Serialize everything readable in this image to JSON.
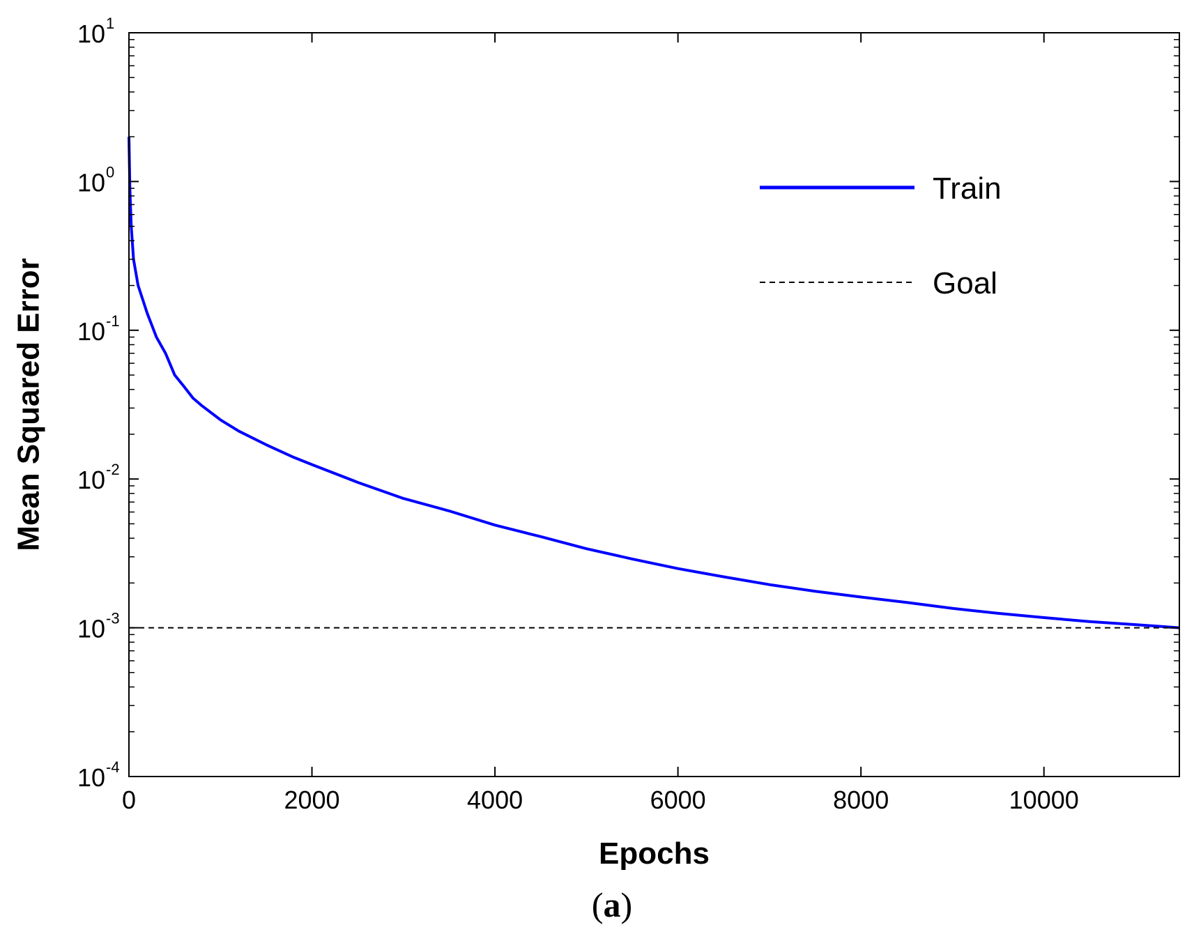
{
  "chart_data": {
    "type": "line",
    "xlabel": "Epochs",
    "ylabel": "Mean Squared Error",
    "xlim": [
      0,
      11480
    ],
    "ylim": [
      0.0001,
      10
    ],
    "yscale": "log",
    "x_ticks": [
      0,
      2000,
      4000,
      6000,
      8000,
      10000
    ],
    "x_tick_labels": [
      "0",
      "2000",
      "4000",
      "6000",
      "8000",
      "10000"
    ],
    "y_ticks": [
      10,
      1,
      0.1,
      0.01,
      0.001,
      0.0001
    ],
    "y_tick_base": [
      "10",
      "10",
      "10",
      "10",
      "10",
      "10"
    ],
    "y_tick_exponents": [
      "1",
      "0",
      "-1",
      "-2",
      "-3",
      "-4"
    ],
    "grid": false,
    "legend": {
      "placement": "top-right",
      "entries": [
        "Train",
        "Goal"
      ]
    },
    "series": [
      {
        "name": "Train",
        "color": "#0000ff",
        "style": "solid",
        "x": [
          0,
          10,
          25,
          50,
          100,
          200,
          300,
          400,
          500,
          600,
          700,
          800,
          1000,
          1200,
          1500,
          1800,
          2000,
          2500,
          3000,
          3500,
          4000,
          4500,
          5000,
          5500,
          6000,
          6500,
          7000,
          7500,
          8000,
          8500,
          9000,
          9500,
          10000,
          10500,
          11000,
          11480
        ],
        "y": [
          2.0,
          0.9,
          0.5,
          0.3,
          0.2,
          0.13,
          0.09,
          0.07,
          0.05,
          0.042,
          0.035,
          0.031,
          0.025,
          0.021,
          0.017,
          0.014,
          0.0125,
          0.0095,
          0.0074,
          0.0061,
          0.0049,
          0.0041,
          0.0034,
          0.0029,
          0.0025,
          0.0022,
          0.00195,
          0.00176,
          0.00161,
          0.00148,
          0.00135,
          0.00125,
          0.00117,
          0.0011,
          0.00105,
          0.001
        ]
      },
      {
        "name": "Goal",
        "color": "#000000",
        "style": "dashed",
        "x": [
          0,
          11480
        ],
        "y": [
          0.001,
          0.001
        ]
      }
    ]
  },
  "caption": {
    "open": "(",
    "letter": "a",
    "close": ")"
  }
}
